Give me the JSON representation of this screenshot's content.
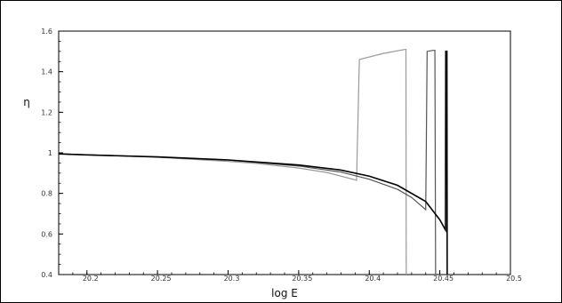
{
  "chart_data": {
    "type": "line",
    "title": "",
    "xlabel": "log E",
    "ylabel": "η",
    "xlim": [
      20.18,
      20.5
    ],
    "ylim": [
      0.4,
      1.6
    ],
    "xticks": [
      20.2,
      20.25,
      20.3,
      20.35,
      20.4,
      20.45,
      20.5
    ],
    "xtick_labels": [
      "20.2",
      "20.25",
      "20.3",
      "20.35",
      "20.4",
      "20.45",
      "20.5"
    ],
    "yticks": [
      0.4,
      0.6,
      0.8,
      1.0,
      1.2,
      1.4,
      1.6
    ],
    "ytick_labels": [
      "0.4",
      "0.6",
      "0.8",
      "1",
      "1.2",
      "1.4",
      "1.6"
    ],
    "grid": false,
    "legend": "none",
    "series": [
      {
        "color": "#999999",
        "x": [
          20.18,
          20.2,
          20.25,
          20.3,
          20.32,
          20.35,
          20.37,
          20.38,
          20.391,
          20.393,
          20.41,
          20.4255,
          20.426,
          20.4262
        ],
        "y": [
          0.995,
          0.99,
          0.978,
          0.958,
          0.948,
          0.925,
          0.903,
          0.885,
          0.865,
          1.46,
          1.49,
          1.51,
          1.51,
          0.4
        ]
      },
      {
        "color": "#555555",
        "x": [
          20.18,
          20.2,
          20.25,
          20.3,
          20.35,
          20.38,
          20.4,
          20.42,
          20.43,
          20.44,
          20.441,
          20.445,
          20.4465,
          20.447
        ],
        "y": [
          0.995,
          0.99,
          0.98,
          0.965,
          0.935,
          0.905,
          0.87,
          0.82,
          0.78,
          0.72,
          1.5,
          1.505,
          1.505,
          0.4
        ]
      },
      {
        "color": "#000000",
        "x": [
          20.18,
          20.2,
          20.25,
          20.3,
          20.35,
          20.38,
          20.4,
          20.42,
          20.44,
          20.45,
          20.454,
          20.4542,
          20.455,
          20.4552
        ],
        "y": [
          0.995,
          0.99,
          0.98,
          0.965,
          0.94,
          0.915,
          0.885,
          0.84,
          0.76,
          0.67,
          0.62,
          1.5,
          1.5,
          0.4
        ]
      }
    ]
  }
}
